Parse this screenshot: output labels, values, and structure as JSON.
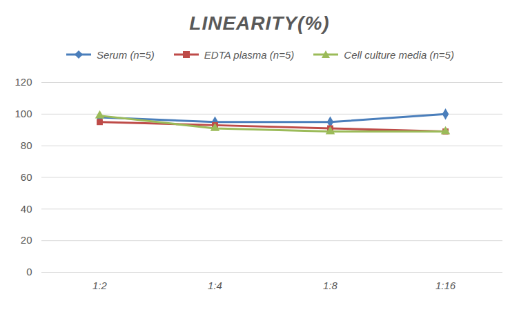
{
  "chart_data": {
    "type": "line",
    "title": "LINEARITY(%)",
    "categories": [
      "1:2",
      "1:4",
      "1:8",
      "1:16"
    ],
    "series": [
      {
        "name": "Serum (n=5)",
        "color": "#4a7ebb",
        "marker": "diamond",
        "values": [
          98,
          95,
          95,
          100
        ]
      },
      {
        "name": "EDTA plasma (n=5)",
        "color": "#be4b48",
        "marker": "square",
        "values": [
          95,
          93,
          91,
          89
        ]
      },
      {
        "name": "Cell culture media (n=5)",
        "color": "#9bbb59",
        "marker": "triangle",
        "values": [
          99,
          91,
          89,
          89
        ]
      }
    ],
    "ylim": [
      0,
      120
    ],
    "yticks": [
      0,
      20,
      40,
      60,
      80,
      100,
      120
    ],
    "grid": true,
    "legend": "top"
  }
}
